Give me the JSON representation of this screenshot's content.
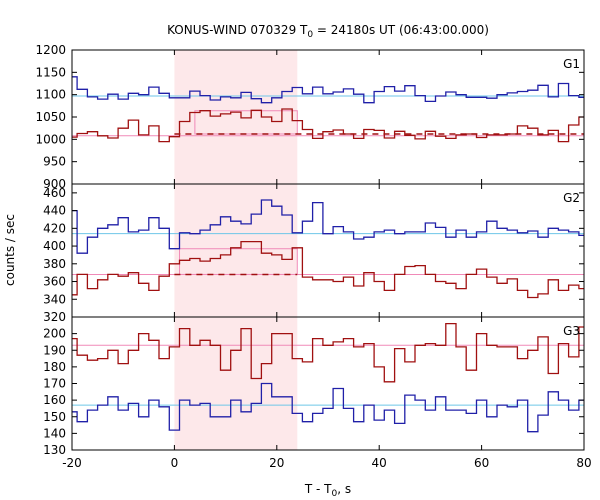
{
  "chart_data": {
    "type": "line",
    "title": {
      "prefix": "KONUS-WIND 070329 T",
      "sub": "0",
      "suffix": " = 24180s UT (06:43:00.000)"
    },
    "xlabel": {
      "prefix": "T - T",
      "sub": "0",
      "suffix": ", s"
    },
    "ylabel": "counts / sec",
    "xlim": [
      -20,
      80
    ],
    "x_ticks": [
      -20,
      0,
      20,
      40,
      60,
      80
    ],
    "highlight": {
      "from": 0,
      "to": 24,
      "color": "#fde8ea"
    },
    "colors": {
      "blue": "#2020a8",
      "red": "#a01010",
      "light_blue": "#6ec6e8",
      "pink": "#f08ab8"
    },
    "panels": [
      {
        "name": "G1",
        "ylim": [
          900,
          1200
        ],
        "y_ticks": [
          900,
          950,
          1000,
          1050,
          1100,
          1150,
          1200
        ],
        "baselines": [
          {
            "value": 1097,
            "color": "light_blue"
          },
          {
            "value": 1008,
            "color": "pink"
          }
        ],
        "box": {
          "from": 4,
          "to": 24,
          "bottom": 1012,
          "top": 1064,
          "color": "pink"
        },
        "dashed": {
          "from": 0,
          "to": 80,
          "value": 1012,
          "color": "red"
        },
        "series": [
          {
            "name": "blue",
            "color": "blue",
            "x": [
              -20,
              -19,
              -17,
              -15,
              -13,
              -11,
              -9,
              -7,
              -5,
              -3,
              -1,
              1,
              3,
              5,
              7,
              9,
              11,
              13,
              15,
              17,
              19,
              21,
              23,
              25,
              27,
              29,
              31,
              33,
              35,
              37,
              39,
              41,
              43,
              45,
              47,
              49,
              51,
              53,
              55,
              57,
              59,
              61,
              63,
              65,
              67,
              69,
              71,
              73,
              75,
              77,
              79,
              80
            ],
            "values": [
              1140,
              1112,
              1095,
              1090,
              1101,
              1090,
              1103,
              1100,
              1117,
              1103,
              1093,
              1093,
              1108,
              1098,
              1088,
              1095,
              1093,
              1105,
              1091,
              1082,
              1093,
              1107,
              1116,
              1102,
              1117,
              1102,
              1106,
              1113,
              1101,
              1082,
              1107,
              1118,
              1108,
              1120,
              1098,
              1085,
              1097,
              1106,
              1100,
              1094,
              1094,
              1092,
              1100,
              1104,
              1107,
              1110,
              1121,
              1095,
              1125,
              1098,
              1094,
              1094
            ]
          },
          {
            "name": "red",
            "color": "red",
            "x": [
              -20,
              -19,
              -17,
              -15,
              -13,
              -11,
              -9,
              -7,
              -5,
              -3,
              -1,
              1,
              3,
              5,
              7,
              9,
              11,
              13,
              15,
              17,
              19,
              21,
              23,
              25,
              27,
              29,
              31,
              33,
              35,
              37,
              39,
              41,
              43,
              45,
              47,
              49,
              51,
              53,
              55,
              57,
              59,
              61,
              63,
              65,
              67,
              69,
              71,
              73,
              75,
              77,
              79,
              80
            ],
            "values": [
              1005,
              1013,
              1017,
              1008,
              1003,
              1025,
              1043,
              1010,
              1030,
              995,
              1006,
              1040,
              1060,
              1064,
              1052,
              1057,
              1061,
              1048,
              1065,
              1050,
              1040,
              1068,
              1042,
              1022,
              1002,
              1017,
              1021,
              1012,
              1002,
              1022,
              1020,
              1003,
              1018,
              1009,
              1001,
              1018,
              1007,
              1002,
              1010,
              1012,
              1004,
              1010,
              1010,
              1012,
              1030,
              1025,
              1010,
              1020,
              995,
              1032,
              1050,
              1050
            ]
          }
        ]
      },
      {
        "name": "G2",
        "ylim": [
          320,
          470
        ],
        "y_ticks": [
          320,
          340,
          360,
          380,
          400,
          420,
          440,
          460
        ],
        "baselines": [
          {
            "value": 414,
            "color": "light_blue"
          },
          {
            "value": 368,
            "color": "pink"
          }
        ],
        "box": {
          "from": 1,
          "to": 24,
          "bottom": 368,
          "top": 397,
          "color": "pink"
        },
        "dashed": {
          "from": 0,
          "to": 24,
          "value": 368,
          "color": "red"
        },
        "series": [
          {
            "name": "blue",
            "color": "blue",
            "x": [
              -20,
              -19,
              -17,
              -15,
              -13,
              -11,
              -9,
              -7,
              -5,
              -3,
              -1,
              1,
              3,
              5,
              7,
              9,
              11,
              13,
              15,
              17,
              19,
              21,
              23,
              25,
              27,
              29,
              31,
              33,
              35,
              37,
              39,
              41,
              43,
              45,
              47,
              49,
              51,
              53,
              55,
              57,
              59,
              61,
              63,
              65,
              67,
              69,
              71,
              73,
              75,
              77,
              79,
              80
            ],
            "values": [
              440,
              392,
              410,
              420,
              424,
              432,
              416,
              418,
              432,
              420,
              397,
              415,
              414,
              418,
              424,
              433,
              428,
              425,
              436,
              452,
              445,
              435,
              415,
              428,
              449,
              414,
              422,
              416,
              408,
              410,
              416,
              418,
              414,
              416,
              416,
              426,
              421,
              410,
              418,
              410,
              416,
              428,
              420,
              418,
              415,
              417,
              410,
              420,
              418,
              416,
              412,
              412
            ]
          },
          {
            "name": "red",
            "color": "red",
            "x": [
              -20,
              -19,
              -17,
              -15,
              -13,
              -11,
              -9,
              -7,
              -5,
              -3,
              -1,
              1,
              3,
              5,
              7,
              9,
              11,
              13,
              15,
              17,
              19,
              21,
              23,
              25,
              27,
              29,
              31,
              33,
              35,
              37,
              39,
              41,
              43,
              45,
              47,
              49,
              51,
              53,
              55,
              57,
              59,
              61,
              63,
              65,
              67,
              69,
              71,
              73,
              75,
              77,
              79,
              80
            ],
            "values": [
              345,
              368,
              352,
              362,
              368,
              366,
              370,
              358,
              350,
              366,
              380,
              384,
              386,
              383,
              386,
              390,
              398,
              405,
              405,
              392,
              390,
              385,
              398,
              365,
              362,
              362,
              360,
              365,
              355,
              370,
              360,
              350,
              368,
              377,
              378,
              368,
              360,
              358,
              352,
              368,
              374,
              365,
              358,
              363,
              350,
              342,
              346,
              362,
              350,
              356,
              352,
              352
            ]
          }
        ]
      },
      {
        "name": "G3",
        "ylim": [
          130,
          210
        ],
        "y_ticks": [
          130,
          140,
          150,
          160,
          170,
          180,
          190,
          200
        ],
        "baselines": [
          {
            "value": 193,
            "color": "pink"
          },
          {
            "value": 157,
            "color": "light_blue"
          }
        ],
        "box": null,
        "dashed": null,
        "series": [
          {
            "name": "red",
            "color": "red",
            "x": [
              -20,
              -19,
              -17,
              -15,
              -13,
              -11,
              -9,
              -7,
              -5,
              -3,
              -1,
              1,
              3,
              5,
              7,
              9,
              11,
              13,
              15,
              17,
              19,
              21,
              23,
              25,
              27,
              29,
              31,
              33,
              35,
              37,
              39,
              41,
              43,
              45,
              47,
              49,
              51,
              53,
              55,
              57,
              59,
              61,
              63,
              65,
              67,
              69,
              71,
              73,
              75,
              77,
              79,
              80
            ],
            "values": [
              197,
              187,
              184,
              185,
              190,
              182,
              190,
              200,
              196,
              185,
              192,
              203,
              193,
              196,
              193,
              178,
              190,
              203,
              173,
              182,
              200,
              200,
              185,
              183,
              197,
              193,
              195,
              197,
              192,
              194,
              180,
              171,
              191,
              183,
              193,
              194,
              193,
              206,
              192,
              178,
              200,
              193,
              192,
              192,
              185,
              190,
              198,
              176,
              194,
              186,
              204,
              204
            ]
          },
          {
            "name": "blue",
            "color": "blue",
            "x": [
              -20,
              -19,
              -17,
              -15,
              -13,
              -11,
              -9,
              -7,
              -5,
              -3,
              -1,
              1,
              3,
              5,
              7,
              9,
              11,
              13,
              15,
              17,
              19,
              21,
              23,
              25,
              27,
              29,
              31,
              33,
              35,
              37,
              39,
              41,
              43,
              45,
              47,
              49,
              51,
              53,
              55,
              57,
              59,
              61,
              63,
              65,
              67,
              69,
              71,
              73,
              75,
              77,
              79,
              80
            ],
            "values": [
              153,
              147,
              154,
              157,
              162,
              154,
              158,
              150,
              160,
              156,
              142,
              160,
              157,
              158,
              150,
              150,
              160,
              153,
              158,
              170,
              162,
              162,
              152,
              147,
              152,
              155,
              167,
              155,
              147,
              157,
              148,
              154,
              146,
              163,
              160,
              154,
              162,
              154,
              154,
              152,
              160,
              150,
              157,
              156,
              160,
              141,
              151,
              165,
              160,
              154,
              160,
              160
            ]
          }
        ]
      }
    ]
  }
}
